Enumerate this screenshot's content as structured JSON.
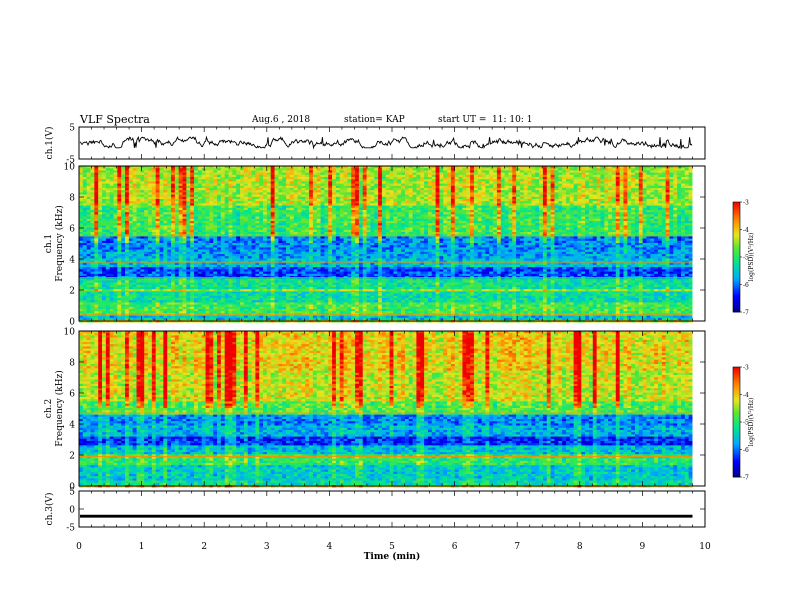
{
  "header": {
    "title": "VLF Spectra",
    "date": "Aug.6  , 2018",
    "station": "station= KAP",
    "start_label": "start  UT =",
    "start_time": "11: 10: 1"
  },
  "chart_data": [
    {
      "type": "line",
      "name": "ch1-waveform",
      "title": "",
      "xlabel": "",
      "ylabel": "ch.1(V)",
      "xlim": [
        0,
        10
      ],
      "ylim": [
        -5,
        5
      ],
      "yticks": [
        "5",
        "-5"
      ],
      "x_end": 9.8,
      "baseline": 0,
      "series": [
        {
          "values_envelope": [
            -1.5,
            1.8
          ]
        }
      ]
    },
    {
      "type": "heatmap",
      "name": "ch1-spectrogram",
      "xlabel": "",
      "ylabel": "ch.1 Frequency (kHz)",
      "xlim": [
        0,
        10
      ],
      "ylim": [
        0,
        10
      ],
      "x_end": 9.8,
      "yticks": [
        "0",
        "2",
        "4",
        "6",
        "8",
        "10"
      ],
      "colorbar": {
        "label": "log(PSD)(V²/Hz)",
        "range": [
          -7,
          -3
        ],
        "ticks": [
          "-3",
          "-4",
          "-5",
          "-6",
          "-7"
        ]
      },
      "bands": [
        {
          "f": [
            0,
            0.3
          ],
          "level": -5.6
        },
        {
          "f": [
            0.3,
            1.2
          ],
          "level": -4.9
        },
        {
          "f": [
            1.2,
            1.9
          ],
          "level": -5.3
        },
        {
          "f": [
            1.9,
            2.1
          ],
          "level": -4.5
        },
        {
          "f": [
            2.1,
            2.8
          ],
          "level": -5.2
        },
        {
          "f": [
            2.8,
            3.4
          ],
          "level": -6.2
        },
        {
          "f": [
            3.4,
            4.0
          ],
          "level": -5.6
        },
        {
          "f": [
            4.0,
            4.6
          ],
          "level": -5.8
        },
        {
          "f": [
            4.6,
            5.5
          ],
          "level": -5.9
        },
        {
          "f": [
            5.5,
            7.5
          ],
          "level": -4.9
        },
        {
          "f": [
            7.5,
            10.0
          ],
          "level": -4.4
        }
      ],
      "lines_khz": [
        0.4,
        1.9,
        2.8,
        3.8,
        5.5
      ]
    },
    {
      "type": "heatmap",
      "name": "ch2-spectrogram",
      "xlabel": "",
      "ylabel": "ch.2 Frequency (kHz)",
      "xlim": [
        0,
        10
      ],
      "ylim": [
        0,
        10
      ],
      "x_end": 9.8,
      "yticks": [
        "0",
        "2",
        "4",
        "6",
        "8",
        "10"
      ],
      "colorbar": {
        "label": "log(PSD)(V²/Hz)",
        "range": [
          -7,
          -3
        ],
        "ticks": [
          "-3",
          "-4",
          "-5",
          "-6",
          "-7"
        ]
      },
      "bands": [
        {
          "f": [
            0,
            0.4
          ],
          "level": -5.3
        },
        {
          "f": [
            0.4,
            1.4
          ],
          "level": -5.5
        },
        {
          "f": [
            1.4,
            2.0
          ],
          "level": -5.0
        },
        {
          "f": [
            2.0,
            2.6
          ],
          "level": -5.6
        },
        {
          "f": [
            2.6,
            3.2
          ],
          "level": -6.3
        },
        {
          "f": [
            3.2,
            3.9
          ],
          "level": -5.7
        },
        {
          "f": [
            3.9,
            4.6
          ],
          "level": -5.9
        },
        {
          "f": [
            4.6,
            5.4
          ],
          "level": -4.8
        },
        {
          "f": [
            5.4,
            7.5
          ],
          "level": -4.3
        },
        {
          "f": [
            7.5,
            10.0
          ],
          "level": -4.1
        }
      ],
      "lines_khz": [
        4.7,
        1.9
      ]
    },
    {
      "type": "line",
      "name": "ch3-waveform",
      "xlabel": "Time  (min)",
      "ylabel": "ch.3(V)",
      "xlim": [
        0,
        10
      ],
      "ylim": [
        -5,
        5
      ],
      "x_end": 9.8,
      "yticks": [
        "5",
        "0",
        "-5"
      ],
      "xticks": [
        "0",
        "1",
        "2",
        "3",
        "4",
        "5",
        "6",
        "7",
        "8",
        "9",
        "10"
      ],
      "series": [
        {
          "values_envelope": [
            -2.4,
            -1.6
          ]
        }
      ]
    }
  ]
}
